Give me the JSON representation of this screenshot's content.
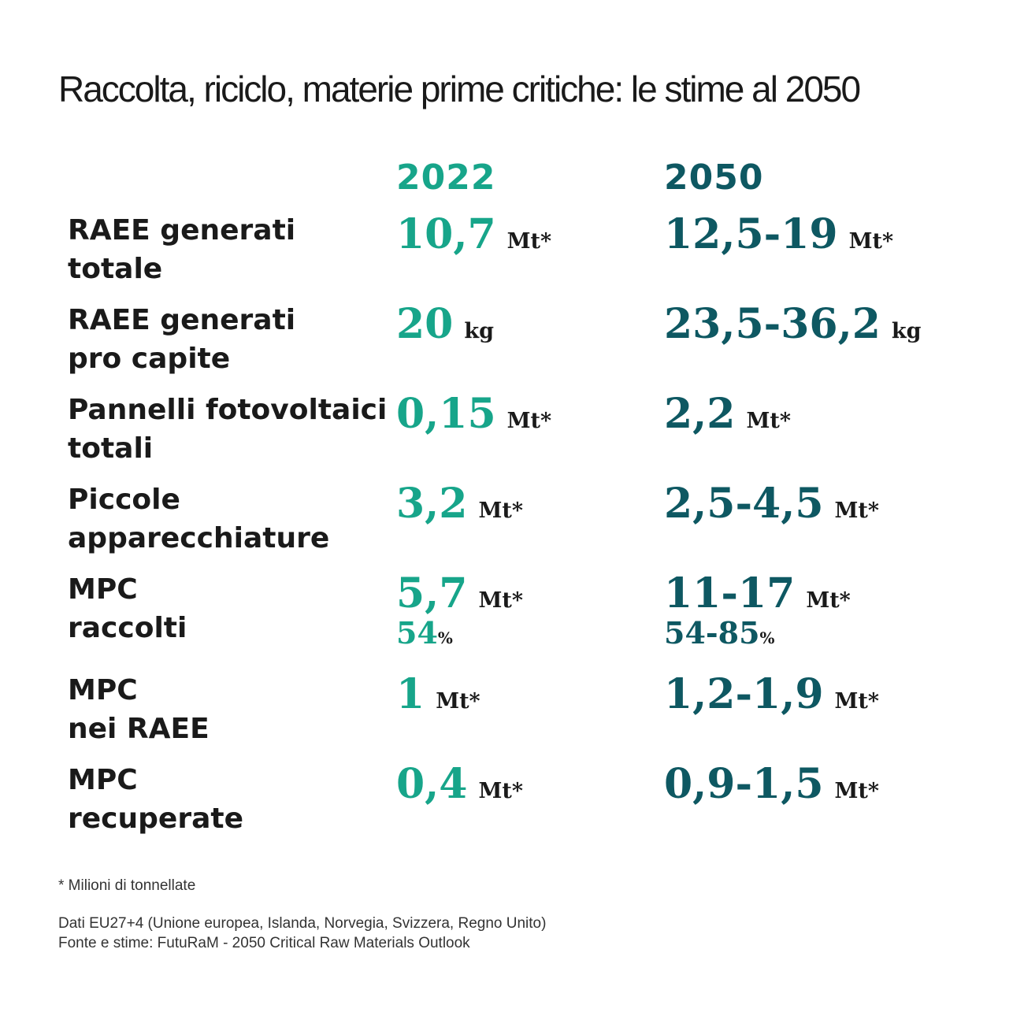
{
  "title": "Raccolta, riciclo, materie prime critiche: le stime al 2050",
  "colors": {
    "col2022": "#17a58a",
    "col2050": "#0e5862",
    "text": "#1a1a1a"
  },
  "years": [
    "2022",
    "2050"
  ],
  "rows": [
    {
      "label_line1": "RAEE  generati",
      "label_line2": "totale",
      "v2022": "10,7",
      "u2022": "Mt*",
      "v2050": "12,5-19",
      "u2050": "Mt*"
    },
    {
      "label_line1": "RAEE  generati",
      "label_line2": "pro capite",
      "v2022": "20",
      "u2022": "kg",
      "v2050": "23,5-36,2",
      "u2050": "kg"
    },
    {
      "label_line1": "Pannelli fotovoltaici",
      "label_line2": "totali",
      "v2022": "0,15",
      "u2022": "Mt*",
      "v2050": "2,2",
      "u2050": "Mt*"
    },
    {
      "label_line1": "Piccole",
      "label_line2": "apparecchiature",
      "v2022": "3,2",
      "u2022": "Mt*",
      "v2050": "2,5-4,5",
      "u2050": "Mt*"
    },
    {
      "label_line1": "MPC",
      "label_line2": "raccolti",
      "v2022": "5,7",
      "u2022": "Mt*",
      "p2022": "54",
      "v2050": "11-17",
      "u2050": "Mt*",
      "p2050": "54-85",
      "pct_sign": "%"
    },
    {
      "label_line1": "MPC",
      "label_line2": "nei RAEE",
      "v2022": "1",
      "u2022": "Mt*",
      "v2050": "1,2-1,9",
      "u2050": "Mt*"
    },
    {
      "label_line1": "MPC",
      "label_line2": "recuperate",
      "v2022": "0,4",
      "u2022": "Mt*",
      "v2050": "0,9-1,5",
      "u2050": "Mt*"
    }
  ],
  "footnote": "* Milioni di tonnellate",
  "source_line1": "Dati EU27+4 (Unione europea, Islanda, Norvegia, Svizzera, Regno Unito)",
  "source_line2": "Fonte e stime: FutuRaM - 2050 Critical Raw Materials Outlook"
}
